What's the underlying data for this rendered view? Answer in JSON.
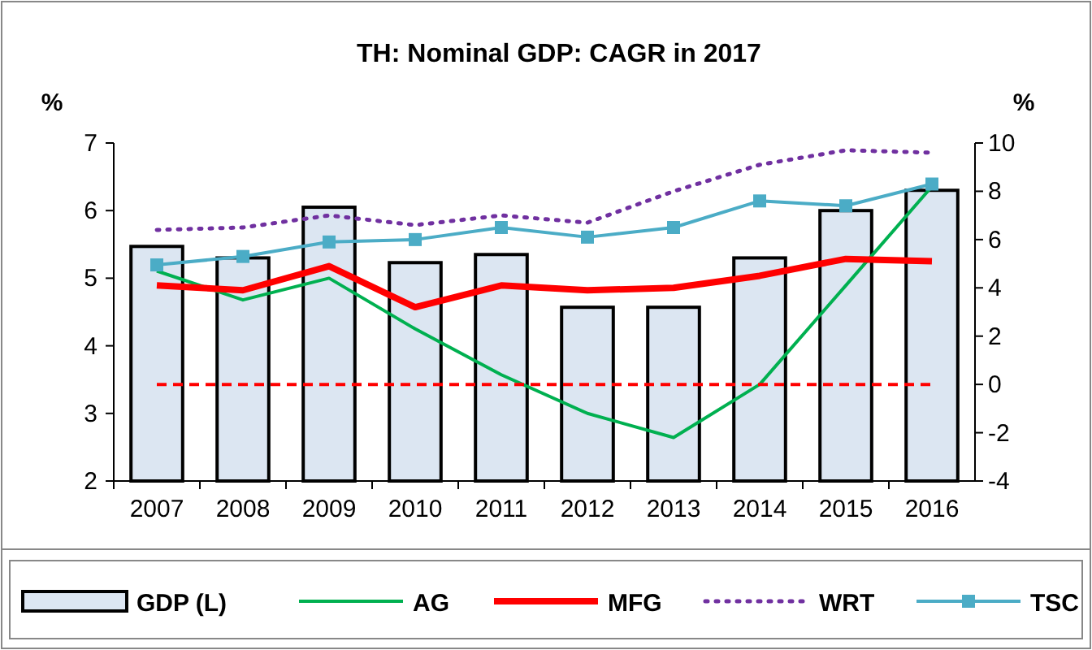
{
  "chart_data": {
    "type": "bar",
    "title": "TH: Nominal GDP: CAGR in 2017",
    "ylabel": "%",
    "y2label": "%",
    "categories": [
      "2007",
      "2008",
      "2009",
      "2010",
      "2011",
      "2012",
      "2013",
      "2014",
      "2015",
      "2016"
    ],
    "series": [
      {
        "name": "GDP (L)",
        "color": "#dce6f2",
        "values": [
          5.47,
          5.3,
          6.05,
          5.23,
          5.35,
          4.57,
          4.57,
          5.3,
          6.0,
          6.3
        ]
      },
      {
        "name": "AG",
        "type": "line",
        "axis": "y2",
        "color": "#00b050",
        "values": [
          4.7,
          3.5,
          4.4,
          2.3,
          0.4,
          -1.2,
          -2.2,
          0,
          4.1,
          8.2
        ]
      },
      {
        "name": "MFG",
        "type": "line",
        "axis": "y2",
        "color": "#ff0000",
        "values": [
          4.1,
          3.9,
          4.9,
          3.2,
          4.1,
          3.9,
          4.0,
          4.5,
          5.2,
          5.1
        ]
      },
      {
        "name": "WRT",
        "type": "line",
        "axis": "y2",
        "color": "#7030a0",
        "line_style": "dotted",
        "values": [
          6.4,
          6.5,
          7.0,
          6.6,
          7.0,
          6.7,
          8.0,
          9.1,
          9.7,
          9.6
        ]
      },
      {
        "name": "TSC",
        "type": "line",
        "axis": "y2",
        "color": "#4bacc6",
        "marker": "square",
        "values": [
          4.95,
          5.3,
          5.9,
          6.0,
          6.5,
          6.1,
          6.5,
          7.6,
          7.4,
          8.3
        ]
      }
    ],
    "ylim": [
      2,
      7
    ],
    "yticks": [
      2,
      3,
      4,
      5,
      6,
      7
    ],
    "y2lim": [
      -4,
      10
    ],
    "y2ticks": [
      -4,
      -2,
      0,
      2,
      4,
      6,
      8,
      10
    ],
    "ref_lines": [
      {
        "axis": "y2",
        "value": 0,
        "color": "#ff0000",
        "line_style": "dashed"
      }
    ],
    "legend": "bottom",
    "grid": false
  }
}
